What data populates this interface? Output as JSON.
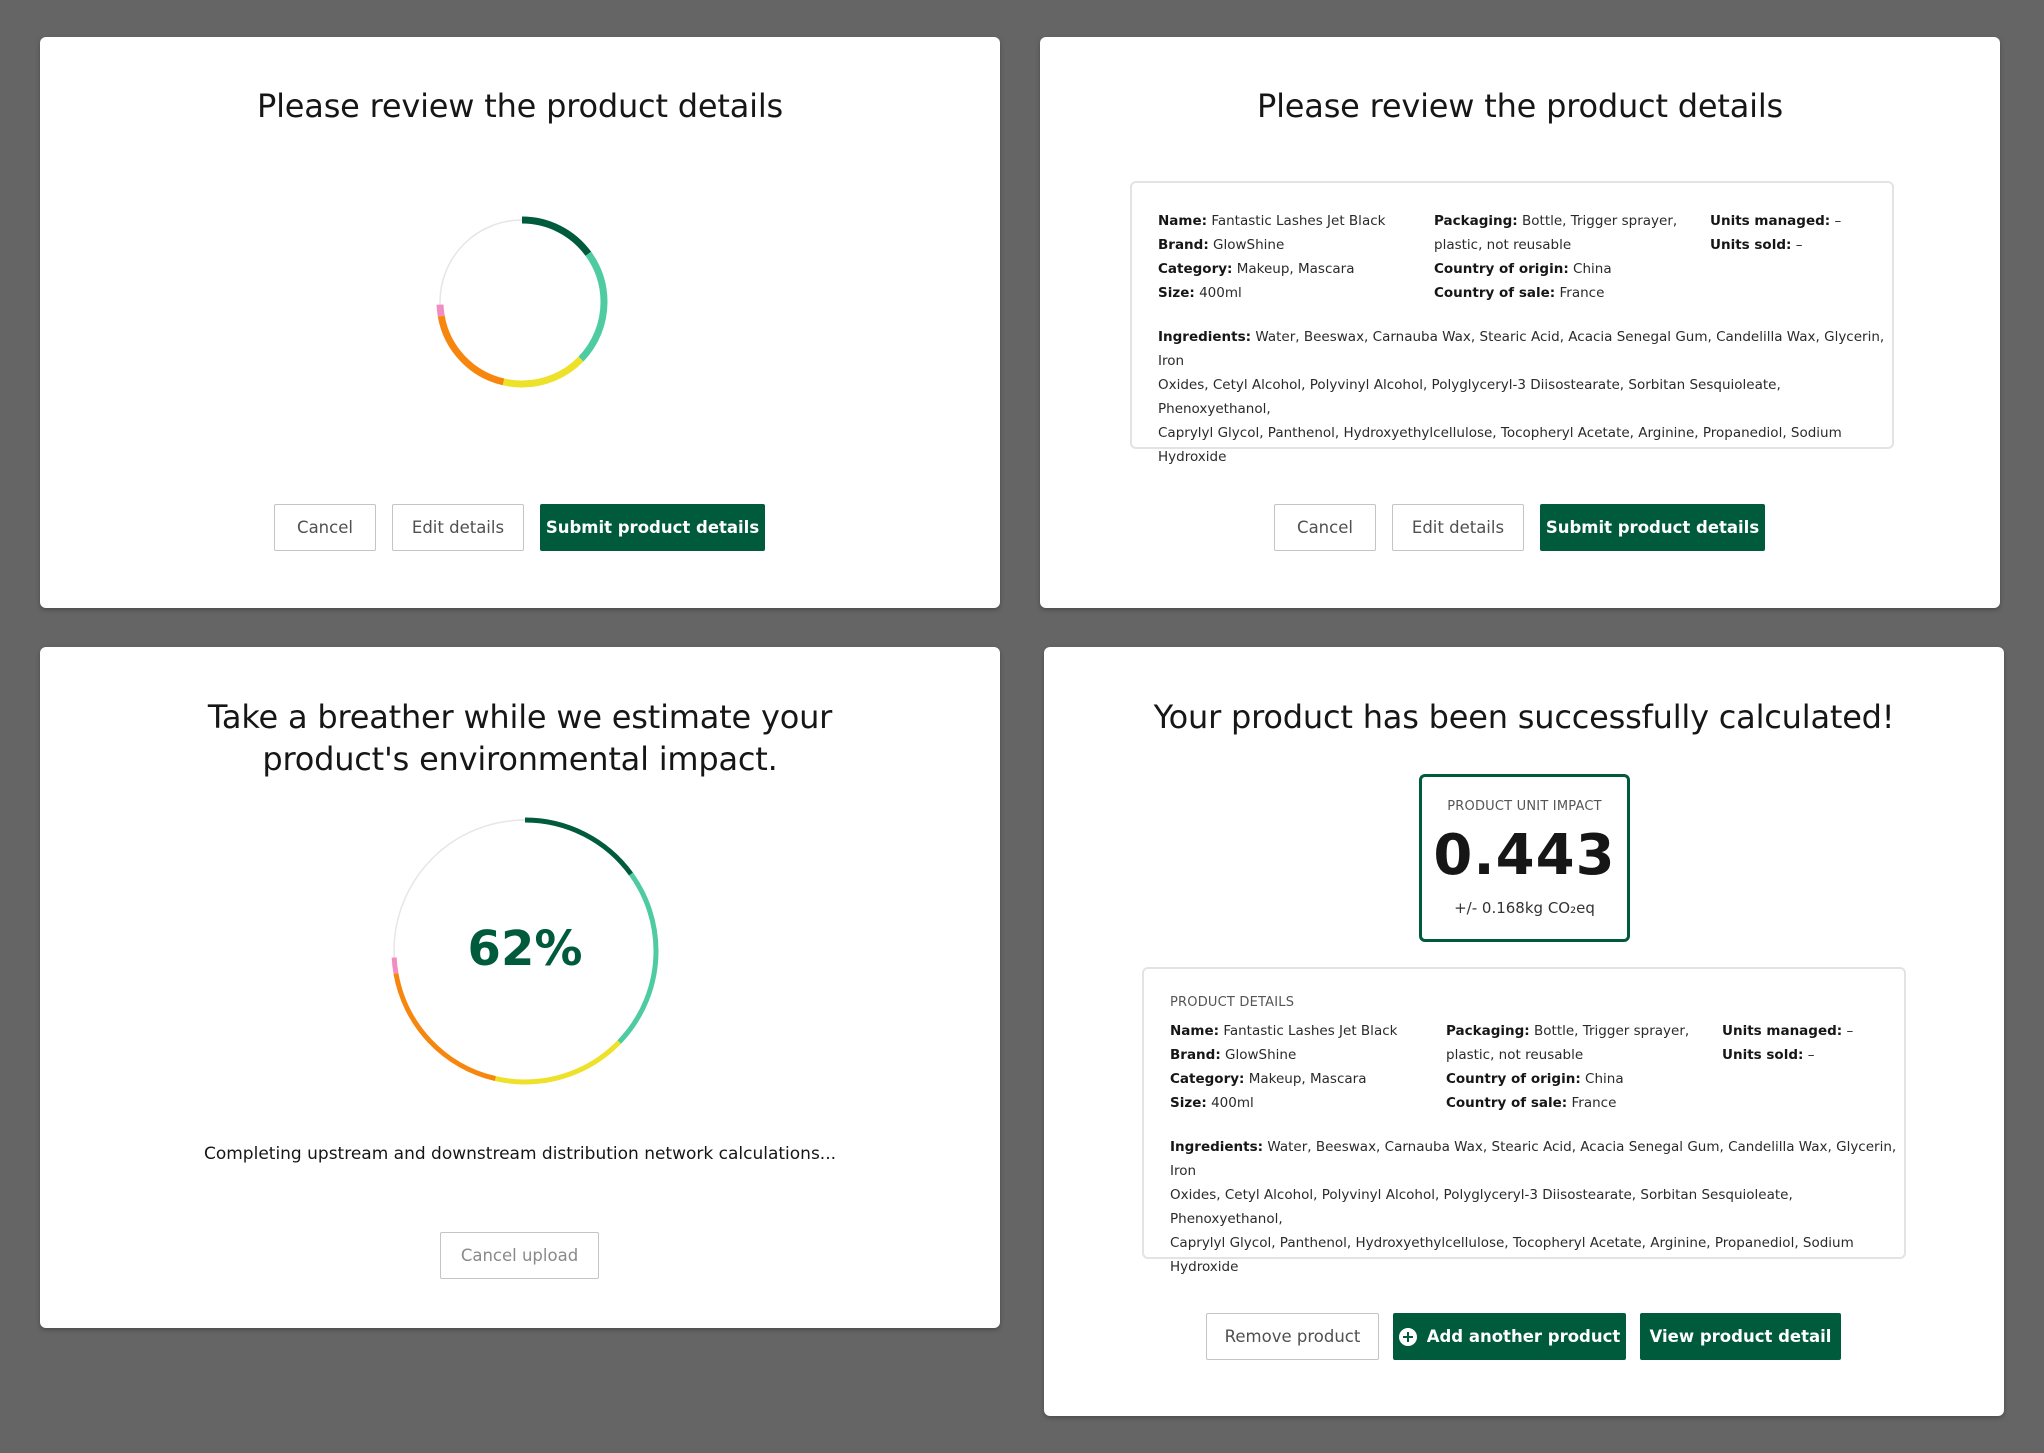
{
  "review": {
    "title": "Please review the product details",
    "cancel_label": "Cancel",
    "edit_label": "Edit details",
    "submit_label": "Submit product details"
  },
  "product": {
    "name_label": "Name:",
    "name": "Fantastic Lashes Jet Black",
    "brand_label": "Brand:",
    "brand": "GlowShine",
    "category_label": "Category:",
    "category": "Makeup, Mascara",
    "size_label": "Size:",
    "size": "400ml",
    "packaging_label": "Packaging:",
    "packaging_line1": "Bottle, Trigger sprayer,",
    "packaging_line2": "plastic, not reusable",
    "origin_label": "Country of origin:",
    "origin": "China",
    "sale_label": "Country of sale:",
    "sale": "France",
    "units_managed_label": "Units managed:",
    "units_managed": "–",
    "units_sold_label": "Units sold:",
    "units_sold": "–",
    "ingredients_label": "Ingredients:",
    "ingredients_line1": "Water, Beeswax, Carnauba Wax, Stearic Acid, Acacia Senegal Gum, Candelilla Wax, Glycerin, Iron",
    "ingredients_line2": "Oxides, Cetyl Alcohol, Polyvinyl Alcohol, Polyglyceryl-3 Diisostearate, Sorbitan Sesquioleate, Phenoxyethanol,",
    "ingredients_line3": "Caprylyl Glycol, Panthenol, Hydroxyethylcellulose, Tocopheryl Acetate, Arginine, Propanediol, Sodium",
    "ingredients_line4": "Hydroxide"
  },
  "loading": {
    "title_line1": "Take a breather while we estimate your",
    "title_line2": "product's environmental impact.",
    "percent": "62%",
    "progress_value": 0.62,
    "status_text": "Completing upstream and downstream distribution network calculations...",
    "cancel_label": "Cancel upload"
  },
  "result": {
    "title": "Your product has been successfully calculated!",
    "impact_label": "PRODUCT UNIT IMPACT",
    "impact_value": "0.443",
    "impact_uncertainty": "+/- 0.168kg CO₂eq",
    "details_label": "PRODUCT DETAILS",
    "remove_label": "Remove product",
    "add_label": "Add another product",
    "view_label": "View product detail"
  },
  "colors": {
    "brand_green": "#005b3c",
    "ring_segments": [
      "#005b3c",
      "#4ecba0",
      "#eee12a",
      "#f7860f",
      "#f28dc4"
    ],
    "ring_track": "#e6e6e6"
  }
}
